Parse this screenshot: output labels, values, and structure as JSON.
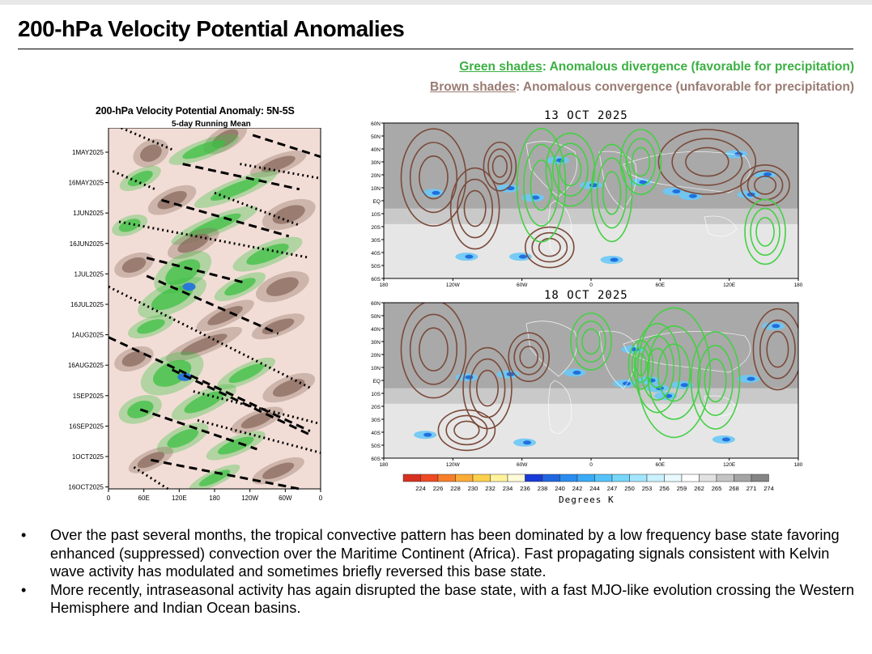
{
  "slide": {
    "title": "200-hPa Velocity Potential Anomalies",
    "legend_green_term": "Green shades",
    "legend_green_rest": ": Anomalous divergence (favorable for precipitation)",
    "legend_brown_term": "Brown shades",
    "legend_brown_rest": ": Anomalous convergence (unfavorable for precipitation)",
    "green_color": "#3cb043",
    "brown_color": "#9a7b72"
  },
  "chart_data": [
    {
      "type": "heatmap",
      "title": "200-hPa Velocity Potential Anomaly: 5N-5S",
      "subtitle": "5-day Running Mean",
      "x_tick_labels": [
        "0",
        "60E",
        "120E",
        "180",
        "120W",
        "60W",
        "0"
      ],
      "y_tick_labels": [
        "1MAY2025",
        "16MAY2025",
        "1JUN2025",
        "16JUN2025",
        "1JUL2025",
        "16JUL2025",
        "1AUG2025",
        "16AUG2025",
        "1SEP2025",
        "16SEP2025",
        "1OCT2025",
        "16OCT2025"
      ],
      "colors": {
        "divergence": "#3cc043",
        "strong_divergence": "#2a78d8",
        "convergence": "#8a6a5c",
        "neutral": "#f2ddd6"
      }
    },
    {
      "type": "heatmap",
      "title": "13 OCT 2025",
      "x_tick_labels": [
        "180",
        "120W",
        "60W",
        "0",
        "60E",
        "120E",
        "180"
      ],
      "y_tick_labels": [
        "60N",
        "50N",
        "40N",
        "30N",
        "20N",
        "10N",
        "EQ",
        "10S",
        "20S",
        "30S",
        "40S",
        "50S",
        "60S"
      ]
    },
    {
      "type": "heatmap",
      "title": "18 OCT 2025",
      "x_tick_labels": [
        "180",
        "120W",
        "60W",
        "0",
        "60E",
        "120E",
        "180"
      ],
      "y_tick_labels": [
        "60N",
        "50N",
        "40N",
        "30N",
        "20N",
        "10N",
        "EQ",
        "10S",
        "20S",
        "30S",
        "40S",
        "50S",
        "60S"
      ]
    },
    {
      "type": "table",
      "title": "Degrees K",
      "categories": [
        "224",
        "226",
        "228",
        "230",
        "232",
        "234",
        "236",
        "238",
        "240",
        "242",
        "244",
        "247",
        "250",
        "253",
        "256",
        "259",
        "262",
        "265",
        "268",
        "271",
        "274"
      ],
      "colors": [
        "#d7301f",
        "#ef4a24",
        "#f77f2a",
        "#fbab37",
        "#fdd04c",
        "#fef29c",
        "#fffbd8",
        "#1a3ad8",
        "#2166e0",
        "#2b8cf0",
        "#3aaaf6",
        "#55c3fa",
        "#78d6fb",
        "#a3e6fd",
        "#c9f1fe",
        "#e8fafe",
        "#ffffff",
        "#e2e2e2",
        "#c4c4c4",
        "#a4a4a4",
        "#858585"
      ]
    }
  ],
  "bullets": [
    "Over the past several months, the tropical convective pattern has been dominated by a low frequency base state favoring enhanced (suppressed) convection over the Maritime Continent (Africa). Fast propagating signals consistent with Kelvin wave activity has modulated and sometimes briefly reversed this base state.",
    "More recently, intraseasonal activity has again disrupted the base state, with a fast MJO-like evolution crossing the Western Hemisphere and Indian Ocean basins."
  ]
}
